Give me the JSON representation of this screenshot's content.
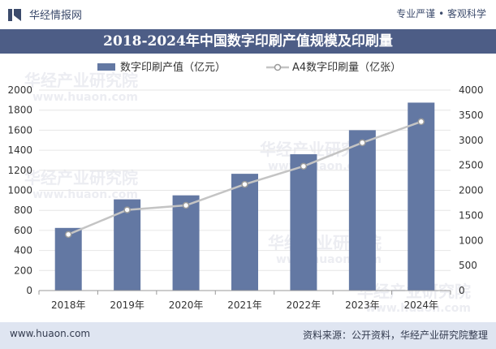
{
  "header": {
    "brand": "华经情报网",
    "tagline": "专业严谨 • 客观科学"
  },
  "footer": {
    "site": "www.huaon.com",
    "source": "资料来源：公开资料，华经产业研究院整理"
  },
  "watermark": {
    "cn": "华经产业研究院",
    "en": "www.huaon.com"
  },
  "colors": {
    "bar": "#6378a3",
    "line": "#c4c4c4",
    "title_bg": "#4d5d86",
    "footer_bg": "#dfe5f1"
  },
  "chart_data": {
    "type": "bar+line",
    "title": "2018-2024年中国数字印刷产值规模及印刷量",
    "categories": [
      "2018年",
      "2019年",
      "2020年",
      "2021年",
      "2022年",
      "2023年",
      "2024年"
    ],
    "series": [
      {
        "name": "数字印刷产值（亿元）",
        "type": "bar",
        "axis": "left",
        "values": [
          625,
          910,
          950,
          1165,
          1360,
          1600,
          1875
        ]
      },
      {
        "name": "A4数字印刷量（亿张）",
        "type": "line",
        "axis": "right",
        "values": [
          1120,
          1610,
          1700,
          2120,
          2480,
          2950,
          3370
        ]
      }
    ],
    "y_left": {
      "min": 0,
      "max": 2000,
      "ticks": [
        "0",
        "200",
        "400",
        "600",
        "800",
        "1000",
        "1200",
        "1400",
        "1600",
        "1800",
        "2000"
      ]
    },
    "y_right": {
      "min": 0,
      "max": 4000,
      "ticks": [
        "0",
        "500",
        "1000",
        "1500",
        "2000",
        "2500",
        "3000",
        "3500",
        "4000"
      ]
    },
    "grid": true,
    "legend": "top-center"
  }
}
